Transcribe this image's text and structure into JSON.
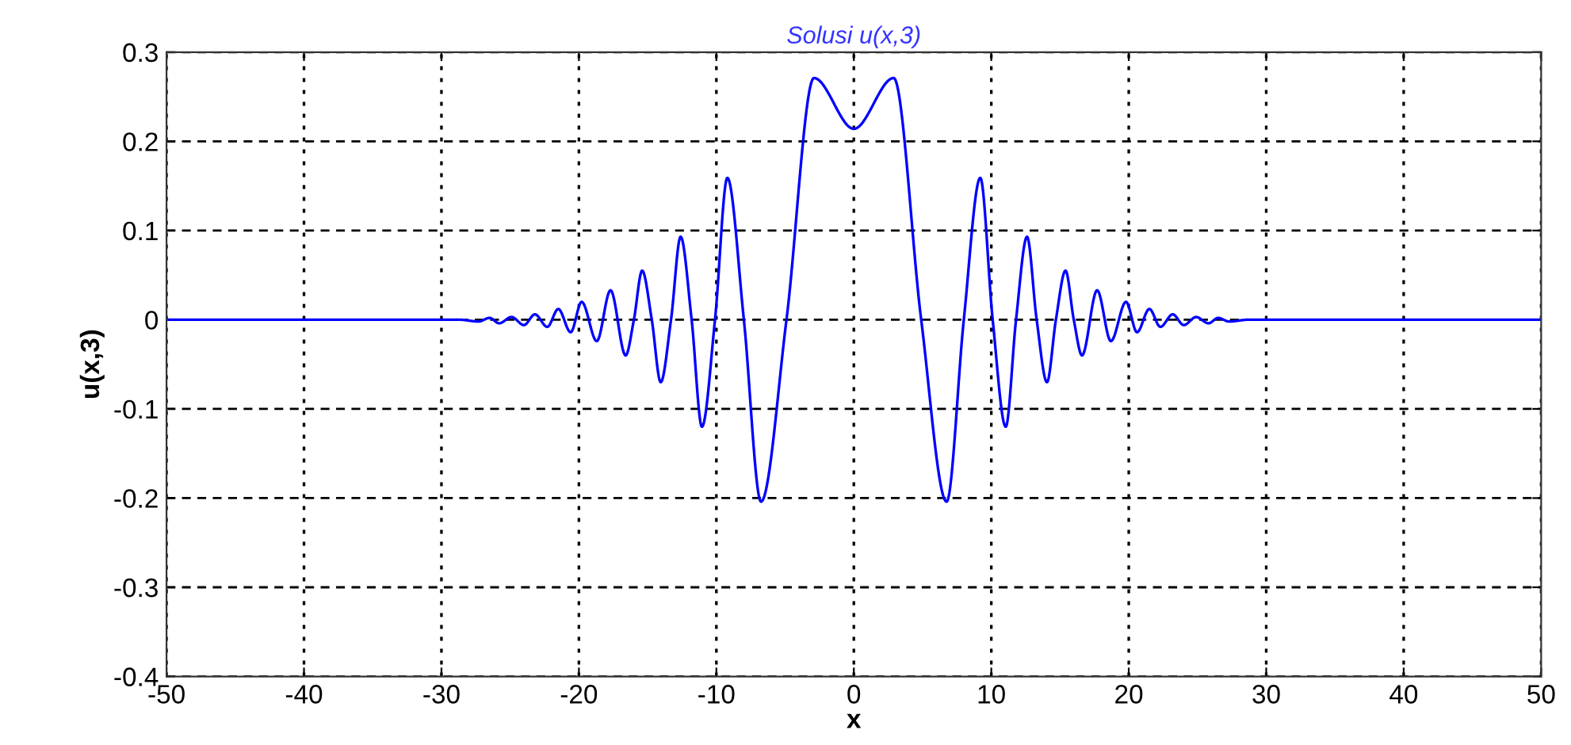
{
  "chart_data": {
    "type": "line",
    "title": "Solusi u(x,3)",
    "xlabel": "x",
    "ylabel": "u(x,3)",
    "xlim": [
      -50,
      50
    ],
    "ylim": [
      -0.4,
      0.3
    ],
    "xticks": [
      -50,
      -40,
      -30,
      -20,
      -10,
      0,
      10,
      20,
      30,
      40,
      50
    ],
    "yticks": [
      -0.4,
      -0.3,
      -0.2,
      -0.1,
      0,
      0.1,
      0.2,
      0.3
    ],
    "grid": true,
    "line_style": "solid",
    "marker": "none",
    "series": [
      {
        "color": "#0000ff",
        "x": [
          -50,
          -28.7,
          -27.3,
          -26.5,
          -25.8,
          -24.9,
          -24.0,
          -23.2,
          -22.3,
          -21.5,
          -20.6,
          -19.8,
          -18.7,
          -17.7,
          -16.6,
          -16.0,
          -15.4,
          -14.7,
          -14.05,
          -13.3,
          -12.6,
          -11.8,
          -11.05,
          -10.1,
          -9.2,
          -8.0,
          -6.75,
          -4.9,
          -2.9,
          0,
          2.9,
          4.9,
          6.75,
          8.0,
          9.2,
          10.1,
          11.05,
          11.8,
          12.6,
          13.3,
          14.05,
          14.7,
          15.4,
          16.0,
          16.6,
          17.7,
          18.7,
          19.8,
          20.6,
          21.5,
          22.3,
          23.2,
          24.0,
          24.9,
          25.8,
          26.5,
          27.3,
          28.7,
          50
        ],
        "values": [
          0,
          0,
          -0.002,
          0.002,
          -0.004,
          0.003,
          -0.006,
          0.006,
          -0.008,
          0.012,
          -0.014,
          0.02,
          -0.024,
          0.033,
          -0.04,
          0,
          0.055,
          0,
          -0.07,
          0,
          0.093,
          0,
          -0.12,
          0,
          0.159,
          0,
          -0.204,
          0,
          0.271,
          0.214,
          0.271,
          0,
          -0.204,
          0,
          0.159,
          0,
          -0.12,
          0,
          0.093,
          0,
          -0.07,
          0,
          0.055,
          0,
          -0.04,
          0.033,
          -0.024,
          0.02,
          -0.014,
          0.012,
          -0.008,
          0.006,
          -0.006,
          0.003,
          -0.004,
          0.002,
          -0.002,
          0,
          0
        ]
      }
    ]
  }
}
